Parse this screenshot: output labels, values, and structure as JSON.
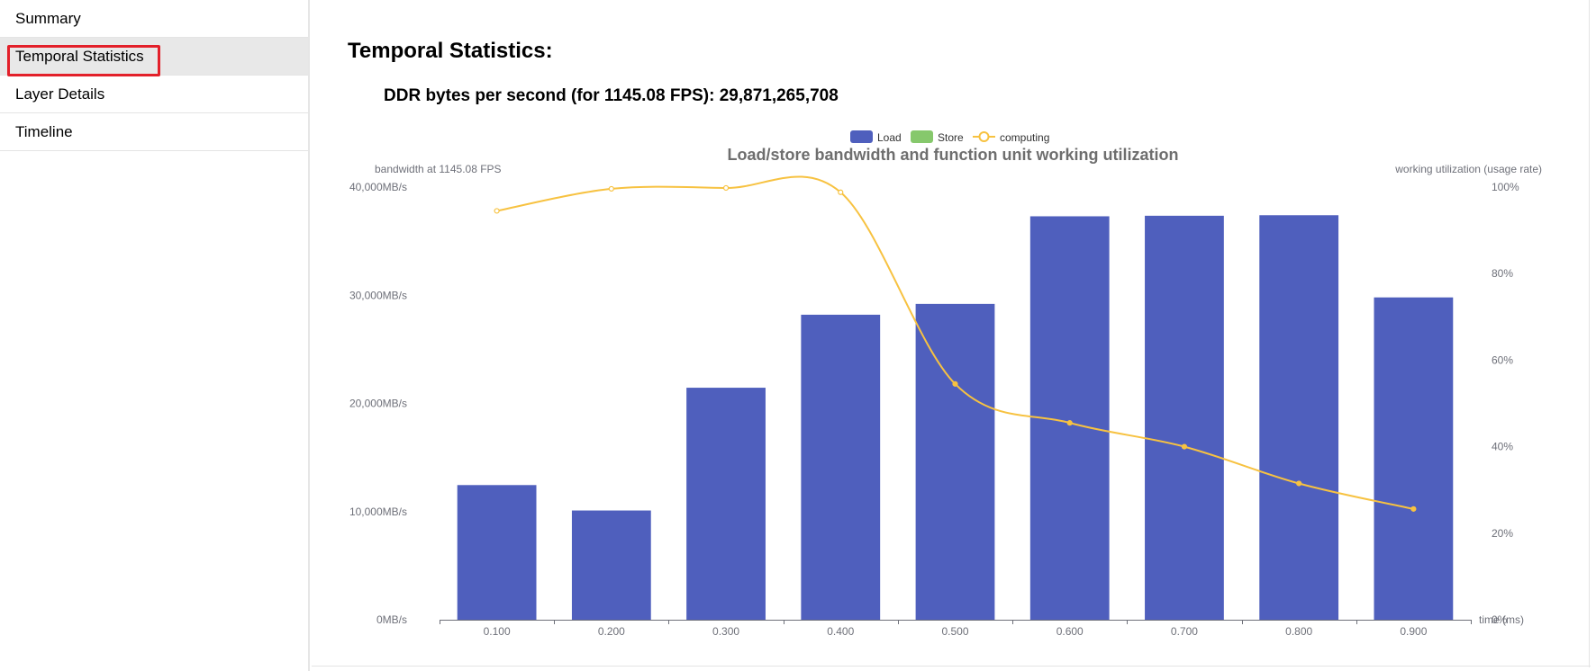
{
  "sidebar": {
    "items": [
      {
        "label": "Summary",
        "active": false
      },
      {
        "label": "Temporal Statistics",
        "active": true
      },
      {
        "label": "Layer Details",
        "active": false
      },
      {
        "label": "Timeline",
        "active": false
      }
    ]
  },
  "main": {
    "title": "Temporal Statistics:",
    "ddr_label": "DDR bytes per second (for 1145.08 FPS): 29,871,265,708"
  },
  "colors": {
    "load": "#4f5fbd",
    "store": "#86c86c",
    "computing": "#f7c241",
    "axis": "#6e7079"
  },
  "chart_data": {
    "type": "bar",
    "title": "Load/store bandwidth and function unit working utilization",
    "ylabel_left": "bandwidth at 1145.08 FPS",
    "ylabel_right": "working utilization (usage rate)",
    "xlabel": "time (ms)",
    "categories": [
      "0.100",
      "0.200",
      "0.300",
      "0.400",
      "0.500",
      "0.600",
      "0.700",
      "0.800",
      "0.900"
    ],
    "y_left": {
      "min": 0,
      "max": 40000,
      "ticks": [
        0,
        10000,
        20000,
        30000,
        40000
      ],
      "tick_labels": [
        "0MB/s",
        "10,000MB/s",
        "20,000MB/s",
        "30,000MB/s",
        "40,000MB/s"
      ]
    },
    "y_right": {
      "min": 0,
      "max": 100,
      "ticks": [
        0,
        20,
        40,
        60,
        80,
        100
      ],
      "tick_labels": [
        "0%",
        "20%",
        "40%",
        "60%",
        "80%",
        "100%"
      ]
    },
    "legend": [
      "Load",
      "Store",
      "computing"
    ],
    "series": [
      {
        "name": "Load",
        "type": "bar",
        "axis": "left",
        "values": [
          12450,
          10100,
          21450,
          28200,
          29200,
          37300,
          37350,
          37400,
          29800
        ]
      },
      {
        "name": "Store",
        "type": "bar",
        "axis": "left",
        "values": [
          0,
          0,
          0,
          0,
          0,
          0,
          0,
          0,
          0
        ]
      },
      {
        "name": "computing",
        "type": "line",
        "axis": "right",
        "values": [
          94.5,
          99.6,
          99.8,
          98.8,
          54.5,
          45.5,
          40.0,
          31.5,
          25.6
        ]
      }
    ]
  }
}
